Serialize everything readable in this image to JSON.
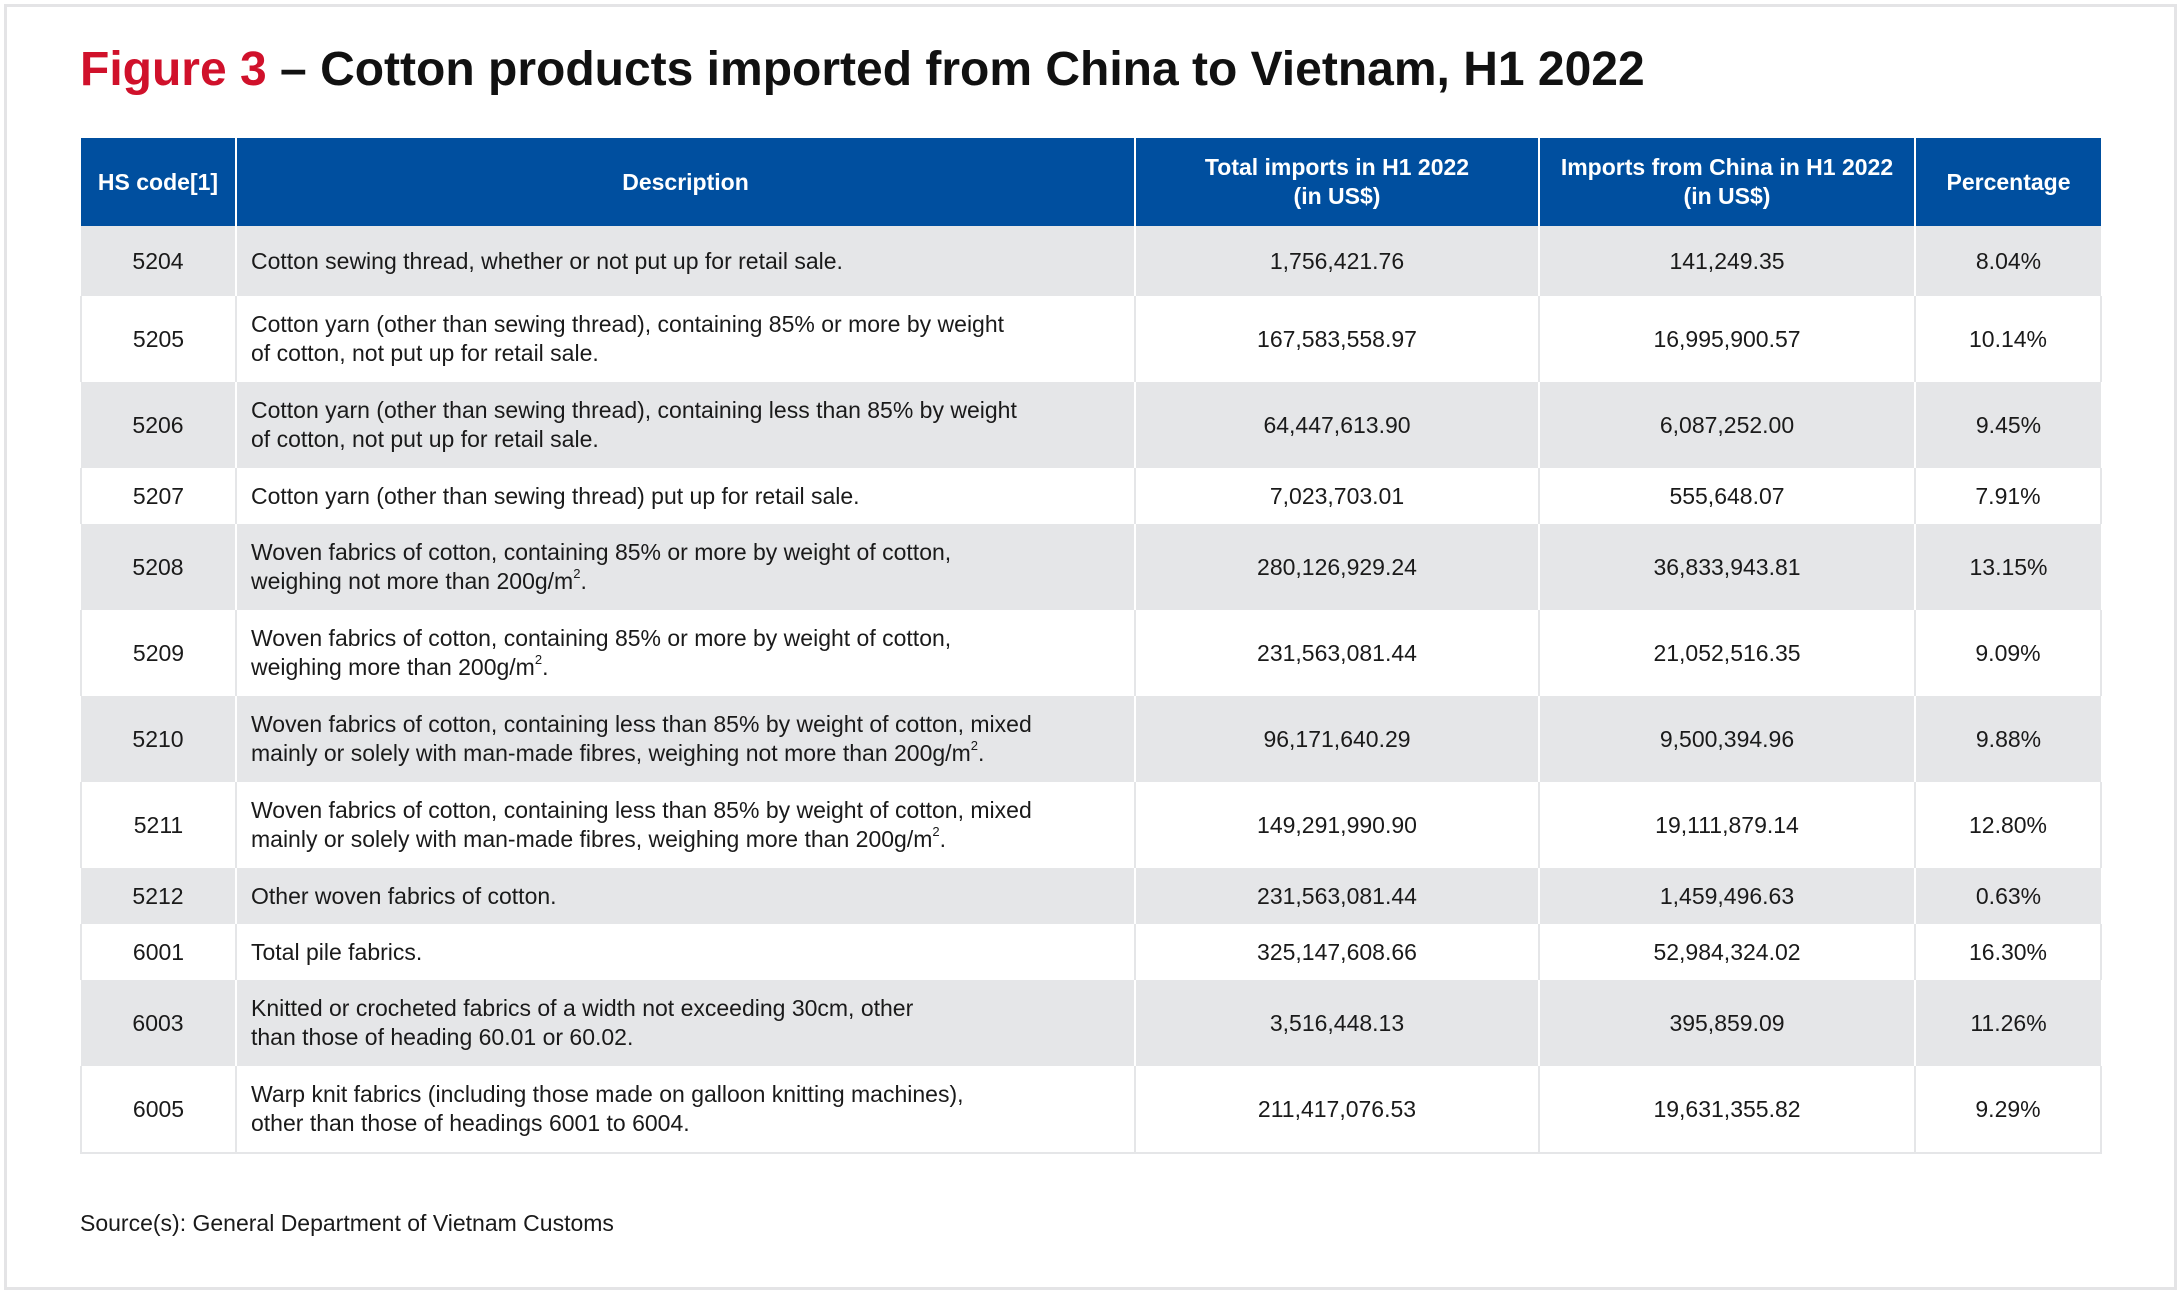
{
  "title": {
    "figure_label": "Figure 3",
    "text": " – Cotton products imported from China to Vietnam, H1 2022"
  },
  "table": {
    "headers": [
      "HS code[1]",
      "Description",
      "Total imports in H1 2022\n(in US$)",
      "Imports from China in H1 2022\n(in US$)",
      "Percentage"
    ],
    "rows": [
      {
        "code": "5204",
        "desc": [
          "Cotton sewing thread, whether or not put up for retail sale."
        ],
        "sup": "",
        "total": "1,756,421.76",
        "china": "141,249.35",
        "pct": "8.04%"
      },
      {
        "code": "5205",
        "desc": [
          "Cotton yarn (other than sewing thread), containing 85% or more by weight",
          "of cotton, not put up for retail sale."
        ],
        "sup": "",
        "total": "167,583,558.97",
        "china": "16,995,900.57",
        "pct": "10.14%"
      },
      {
        "code": "5206",
        "desc": [
          "Cotton yarn (other than sewing thread), containing less than 85% by weight",
          "of cotton, not put up for retail sale."
        ],
        "sup": "",
        "total": "64,447,613.90",
        "china": "6,087,252.00",
        "pct": "9.45%"
      },
      {
        "code": "5207",
        "desc": [
          "Cotton yarn (other than sewing thread) put up for retail sale."
        ],
        "sup": "",
        "total": "7,023,703.01",
        "china": "555,648.07",
        "pct": "7.91%"
      },
      {
        "code": "5208",
        "desc": [
          "Woven fabrics of cotton, containing 85% or more by weight of cotton,",
          "weighing not more than 200g/m"
        ],
        "sup": "2",
        "total": "280,126,929.24",
        "china": "36,833,943.81",
        "pct": "13.15%"
      },
      {
        "code": "5209",
        "desc": [
          "Woven fabrics of cotton, containing 85% or more by weight of cotton,",
          "weighing more than 200g/m"
        ],
        "sup": "2",
        "total": "231,563,081.44",
        "china": "21,052,516.35",
        "pct": "9.09%"
      },
      {
        "code": "5210",
        "desc": [
          "Woven fabrics of cotton, containing less than 85% by weight of cotton, mixed",
          "mainly or solely with man-made fibres, weighing not more than 200g/m"
        ],
        "sup": "2",
        "total": "96,171,640.29",
        "china": "9,500,394.96",
        "pct": "9.88%"
      },
      {
        "code": "5211",
        "desc": [
          "Woven fabrics of cotton, containing less than 85% by weight of cotton, mixed",
          "mainly or solely with man-made fibres, weighing more than 200g/m"
        ],
        "sup": "2",
        "total": "149,291,990.90",
        "china": "19,111,879.14",
        "pct": "12.80%"
      },
      {
        "code": "5212",
        "desc": [
          "Other woven fabrics of cotton."
        ],
        "sup": "",
        "total": "231,563,081.44",
        "china": "1,459,496.63",
        "pct": "0.63%"
      },
      {
        "code": "6001",
        "desc": [
          "Total pile fabrics."
        ],
        "sup": "",
        "total": "325,147,608.66",
        "china": "52,984,324.02",
        "pct": "16.30%"
      },
      {
        "code": "6003",
        "desc": [
          "Knitted or crocheted fabrics of a width not exceeding 30cm, other",
          "than those of heading 60.01 or 60.02."
        ],
        "sup": "",
        "total": "3,516,448.13",
        "china": "395,859.09",
        "pct": "11.26%"
      },
      {
        "code": "6005",
        "desc": [
          "Warp knit fabrics (including those made on galloon knitting machines),",
          "other than those of headings 6001 to 6004."
        ],
        "sup": "",
        "total": "211,417,076.53",
        "china": "19,631,355.82",
        "pct": "9.29%"
      }
    ]
  },
  "source": "Source(s): General Department of Vietnam Customs",
  "colors": {
    "accent_red": "#d0112b",
    "header_blue": "#004f9f",
    "row_gray": "#e5e6e8"
  }
}
